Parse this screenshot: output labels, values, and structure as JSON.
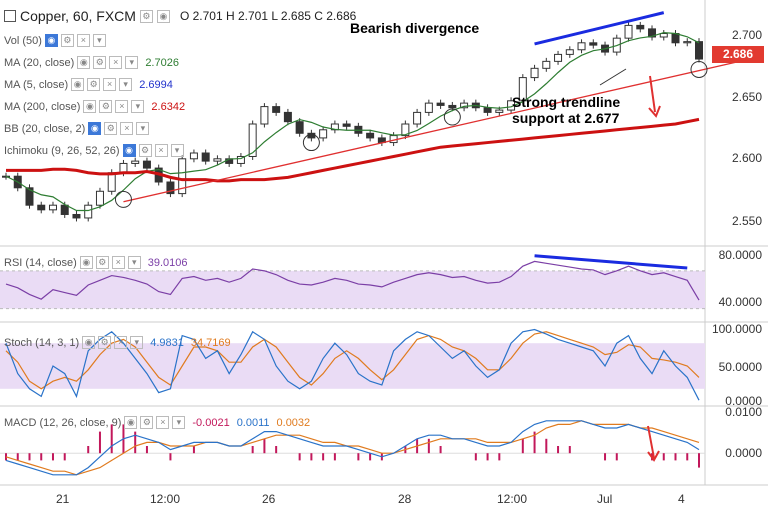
{
  "header": {
    "symbol": "Copper, 60, FXCM",
    "ohlc": "O 2.701  H 2.701  L 2.685  C 2.686"
  },
  "indicators": [
    {
      "label": "Vol (50)",
      "value": "",
      "color": "#555"
    },
    {
      "label": "MA (20, close)",
      "value": "2.7026",
      "color": "#2e7d32"
    },
    {
      "label": "MA (5, close)",
      "value": "2.6994",
      "color": "#2233cc"
    },
    {
      "label": "MA (200, close)",
      "value": "2.6342",
      "color": "#cc1111"
    },
    {
      "label": "BB (20, close, 2)",
      "value": "",
      "color": "#555"
    },
    {
      "label": "Ichimoku (9, 26, 52, 26)",
      "value": "",
      "color": "#555"
    }
  ],
  "last_price": "2.686",
  "price_axis": [
    "2.700",
    "2.650",
    "2.600",
    "2.550"
  ],
  "rsi": {
    "label": "RSI (14, close)",
    "value": "39.0106",
    "axis": [
      "80.0000",
      "40.0000"
    ]
  },
  "stoch": {
    "label": "Stoch (14, 3, 1)",
    "k": "4.9831",
    "d": "34.7169",
    "axis": [
      "100.0000",
      "50.0000",
      "0.0000"
    ]
  },
  "macd": {
    "label": "MACD (12, 26, close, 9)",
    "hist": "-0.0021",
    "macd": "0.0011",
    "signal": "0.0032",
    "axis": [
      "0.0100",
      "0.0000"
    ]
  },
  "time_axis": [
    "21",
    "12:00",
    "26",
    "28",
    "12:00",
    "Jul",
    "4"
  ],
  "annotations": {
    "divergence": "Bearish divergence",
    "support_line1": "Strong trendline",
    "support_line2": "support at 2.677"
  },
  "colors": {
    "price_up": "#26a69a",
    "price_down": "#ef5350",
    "ma20": "#2e7d32",
    "ma200": "#cc1111",
    "trendline": "#e03030",
    "divergence_line": "#1a2be0",
    "rsi": "#7b3fa6",
    "band_fill": "#eadcf5"
  },
  "chart_data": {
    "type": "candlestick",
    "price": {
      "ylim": [
        2.53,
        2.73
      ],
      "close": [
        2.585,
        2.575,
        2.56,
        2.556,
        2.56,
        2.552,
        2.549,
        2.56,
        2.572,
        2.588,
        2.596,
        2.598,
        2.592,
        2.58,
        2.57,
        2.6,
        2.605,
        2.598,
        2.6,
        2.596,
        2.602,
        2.63,
        2.645,
        2.64,
        2.632,
        2.622,
        2.618,
        2.625,
        2.63,
        2.628,
        2.622,
        2.618,
        2.614,
        2.62,
        2.63,
        2.64,
        2.648,
        2.646,
        2.644,
        2.648,
        2.644,
        2.64,
        2.642,
        2.65,
        2.67,
        2.678,
        2.684,
        2.69,
        2.694,
        2.7,
        2.698,
        2.692,
        2.704,
        2.715,
        2.712,
        2.705,
        2.708,
        2.7,
        2.701,
        2.686
      ],
      "ma200": [
        2.59,
        2.59,
        2.59,
        2.59,
        2.591,
        2.591,
        2.59,
        2.588,
        2.587,
        2.587,
        2.588,
        2.588,
        2.589,
        2.587,
        2.584,
        2.582,
        2.582,
        2.582,
        2.581,
        2.581,
        2.582,
        2.582,
        2.582,
        2.583,
        2.584,
        2.586,
        2.588,
        2.59,
        2.592,
        2.594,
        2.596,
        2.598,
        2.6,
        2.602,
        2.604,
        2.606,
        2.608,
        2.61,
        2.611,
        2.612,
        2.613,
        2.614,
        2.615,
        2.616,
        2.617,
        2.618,
        2.619,
        2.62,
        2.621,
        2.622,
        2.623,
        2.624,
        2.625,
        2.626,
        2.627,
        2.628,
        2.629,
        2.63,
        2.632,
        2.634
      ],
      "trendline": [
        [
          10,
          2.563
        ],
        [
          60,
          2.677
        ]
      ],
      "divergence_line": [
        [
          45,
          2.699
        ],
        [
          56,
          2.726
        ]
      ]
    },
    "rsi": {
      "ylim": [
        20,
        90
      ],
      "values": [
        56,
        52,
        45,
        40,
        50,
        47,
        44,
        55,
        60,
        65,
        63,
        60,
        56,
        48,
        45,
        62,
        64,
        60,
        62,
        58,
        62,
        72,
        70,
        66,
        60,
        56,
        55,
        58,
        62,
        60,
        56,
        55,
        53,
        58,
        62,
        66,
        68,
        66,
        63,
        64,
        60,
        57,
        58,
        64,
        75,
        80,
        78,
        76,
        74,
        72,
        71,
        66,
        70,
        75,
        70,
        66,
        68,
        64,
        60,
        39
      ]
    },
    "stoch": {
      "ylim": [
        0,
        100
      ],
      "k": [
        80,
        40,
        20,
        10,
        50,
        40,
        10,
        70,
        85,
        95,
        80,
        60,
        40,
        15,
        20,
        90,
        85,
        60,
        70,
        40,
        65,
        95,
        85,
        50,
        30,
        20,
        30,
        60,
        80,
        65,
        40,
        30,
        25,
        70,
        85,
        95,
        90,
        75,
        60,
        70,
        50,
        35,
        45,
        80,
        95,
        98,
        92,
        85,
        80,
        75,
        70,
        50,
        80,
        90,
        60,
        40,
        70,
        50,
        35,
        5
      ],
      "d": [
        70,
        55,
        30,
        20,
        30,
        35,
        30,
        45,
        65,
        80,
        85,
        75,
        55,
        35,
        25,
        50,
        75,
        75,
        70,
        55,
        55,
        75,
        85,
        75,
        55,
        35,
        25,
        40,
        60,
        70,
        60,
        45,
        32,
        45,
        65,
        85,
        90,
        85,
        75,
        70,
        60,
        45,
        45,
        60,
        80,
        92,
        95,
        90,
        85,
        80,
        75,
        65,
        68,
        78,
        75,
        60,
        58,
        55,
        50,
        35
      ]
    },
    "macd": {
      "ylim": [
        -0.008,
        0.012
      ],
      "macd": [
        -0.002,
        -0.003,
        -0.004,
        -0.005,
        -0.006,
        -0.006,
        -0.006,
        -0.004,
        -0.001,
        0.002,
        0.004,
        0.005,
        0.004,
        0.003,
        0.001,
        0.002,
        0.003,
        0.003,
        0.003,
        0.002,
        0.002,
        0.004,
        0.006,
        0.006,
        0.005,
        0.004,
        0.003,
        0.002,
        0.002,
        0.002,
        0.001,
        0.0,
        -0.001,
        0.0,
        0.002,
        0.004,
        0.005,
        0.005,
        0.004,
        0.004,
        0.003,
        0.002,
        0.002,
        0.003,
        0.006,
        0.008,
        0.009,
        0.009,
        0.009,
        0.009,
        0.008,
        0.007,
        0.007,
        0.008,
        0.007,
        0.006,
        0.005,
        0.004,
        0.003,
        0.001
      ],
      "signal": [
        -0.001,
        -0.002,
        -0.003,
        -0.004,
        -0.005,
        -0.005,
        -0.006,
        -0.005,
        -0.004,
        -0.002,
        0.0,
        0.002,
        0.003,
        0.003,
        0.002,
        0.002,
        0.002,
        0.003,
        0.003,
        0.002,
        0.002,
        0.003,
        0.004,
        0.005,
        0.005,
        0.005,
        0.004,
        0.003,
        0.003,
        0.002,
        0.002,
        0.001,
        0.0,
        0.0,
        0.001,
        0.002,
        0.003,
        0.004,
        0.004,
        0.004,
        0.004,
        0.003,
        0.003,
        0.003,
        0.004,
        0.005,
        0.007,
        0.008,
        0.008,
        0.009,
        0.008,
        0.008,
        0.008,
        0.008,
        0.007,
        0.007,
        0.006,
        0.005,
        0.004,
        0.003
      ]
    }
  }
}
